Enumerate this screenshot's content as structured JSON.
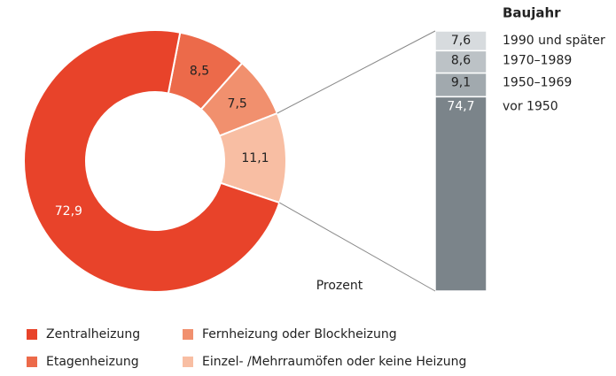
{
  "chart_data": [
    {
      "type": "pie",
      "categories": [
        "Zentralheizung",
        "Etagenheizung",
        "Fernheizung oder Blockheizung",
        "Einzel- /Mehrraumöfen oder keine Heizung"
      ],
      "values": [
        72.9,
        8.5,
        7.5,
        11.1
      ],
      "value_labels": [
        "72,9",
        "8,5",
        "7,5",
        "11,1"
      ],
      "colors": [
        "#e8432a",
        "#ec6a4a",
        "#f1906e",
        "#f8bea3"
      ]
    },
    {
      "type": "bar",
      "title": "Baujahr",
      "axis_label": "Prozent",
      "categories": [
        "1990 und später",
        "1970–1989",
        "1950–1969",
        "vor 1950"
      ],
      "values": [
        7.6,
        8.6,
        9.1,
        74.7
      ],
      "value_labels": [
        "7,6",
        "8,6",
        "9,1",
        "74,7"
      ],
      "colors": [
        "#d7dbde",
        "#bcc2c6",
        "#a1a9ae",
        "#7b848a"
      ]
    }
  ]
}
